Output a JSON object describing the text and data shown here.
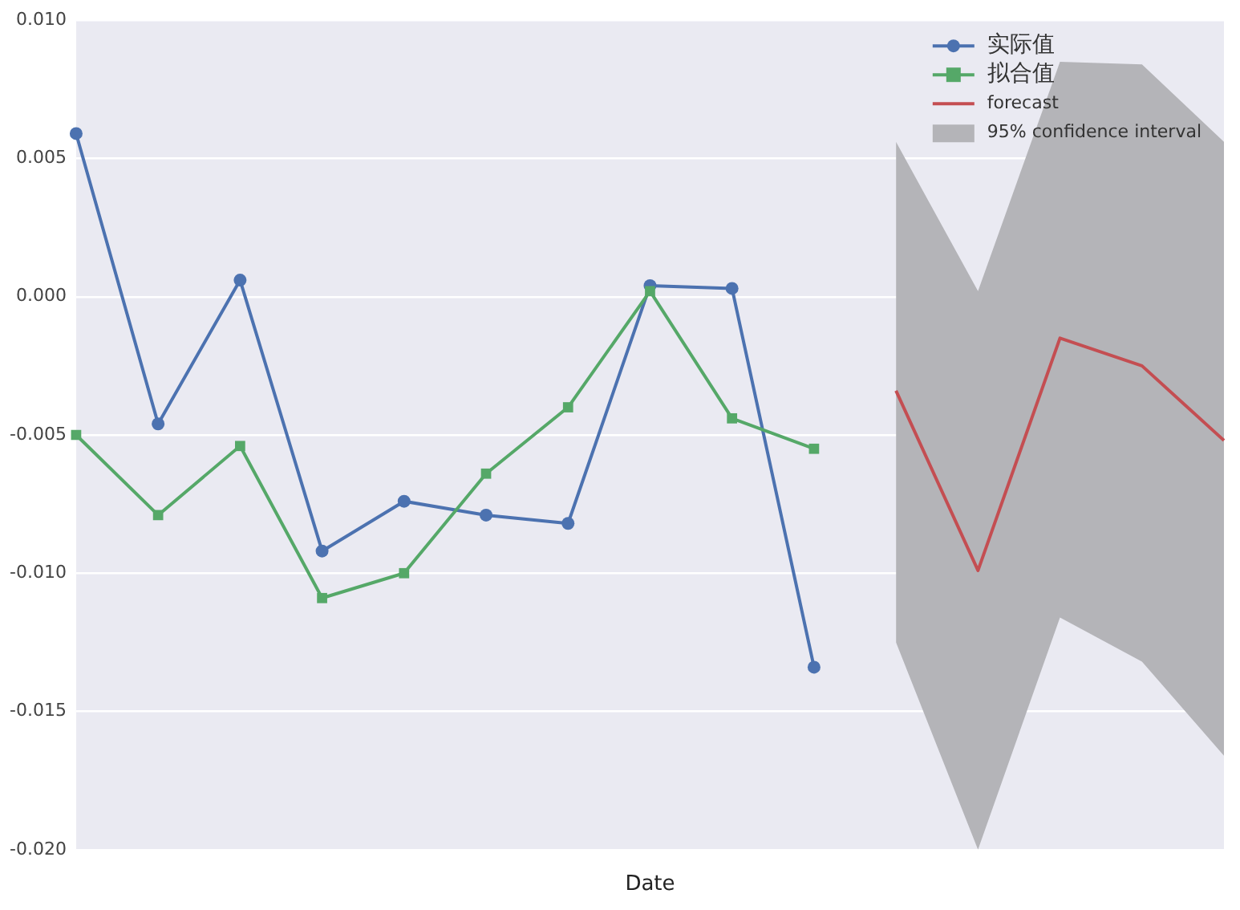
{
  "chart_data": {
    "type": "line",
    "xlabel": "Date",
    "categories": [
      null,
      null,
      null,
      null,
      null,
      null,
      null,
      null,
      null,
      null,
      null,
      null,
      null,
      null,
      null
    ],
    "ylim": [
      -0.02,
      0.01
    ],
    "yticks": [
      {
        "value": -0.02,
        "label": "-0.020"
      },
      {
        "value": -0.015,
        "label": "-0.015"
      },
      {
        "value": -0.01,
        "label": "-0.010"
      },
      {
        "value": -0.005,
        "label": "-0.005"
      },
      {
        "value": 0,
        "label": "0.000"
      },
      {
        "value": 0.005,
        "label": "0.005"
      },
      {
        "value": 0.01,
        "label": "0.010"
      }
    ],
    "grid": "y",
    "legend": "top right",
    "series": [
      {
        "name": "实际值",
        "color": "#4c72b0",
        "marker": "circle",
        "values": [
          0.0059,
          -0.0046,
          0.0006,
          -0.0092,
          -0.0074,
          -0.0079,
          -0.0082,
          0.0004,
          0.0003,
          -0.0134,
          null,
          null,
          null,
          null,
          null
        ]
      },
      {
        "name": "拟合值",
        "color": "#55a868",
        "marker": "square",
        "values": [
          -0.005,
          -0.0079,
          -0.0054,
          -0.0109,
          -0.01,
          -0.0064,
          -0.004,
          0.0002,
          -0.0044,
          -0.0055,
          null,
          null,
          null,
          null,
          null
        ]
      },
      {
        "name": "forecast",
        "color": "#c44e52",
        "marker": "none",
        "values": [
          null,
          null,
          null,
          null,
          null,
          null,
          null,
          null,
          null,
          null,
          -0.0034,
          -0.0099,
          -0.0015,
          -0.0025,
          -0.0052
        ]
      },
      {
        "name": "95% confidence interval",
        "type": "area",
        "color": "#b4b4b8",
        "values": [
          null,
          null,
          null,
          null,
          null,
          null,
          null,
          null,
          null,
          null,
          null,
          null,
          null,
          null,
          null
        ],
        "lower": [
          null,
          null,
          null,
          null,
          null,
          null,
          null,
          null,
          null,
          null,
          -0.0125,
          -0.02,
          -0.0116,
          -0.0132,
          -0.0166
        ],
        "upper": [
          null,
          null,
          null,
          null,
          null,
          null,
          null,
          null,
          null,
          null,
          0.0056,
          0.0002,
          0.0085,
          0.0084,
          0.0056
        ]
      }
    ]
  }
}
